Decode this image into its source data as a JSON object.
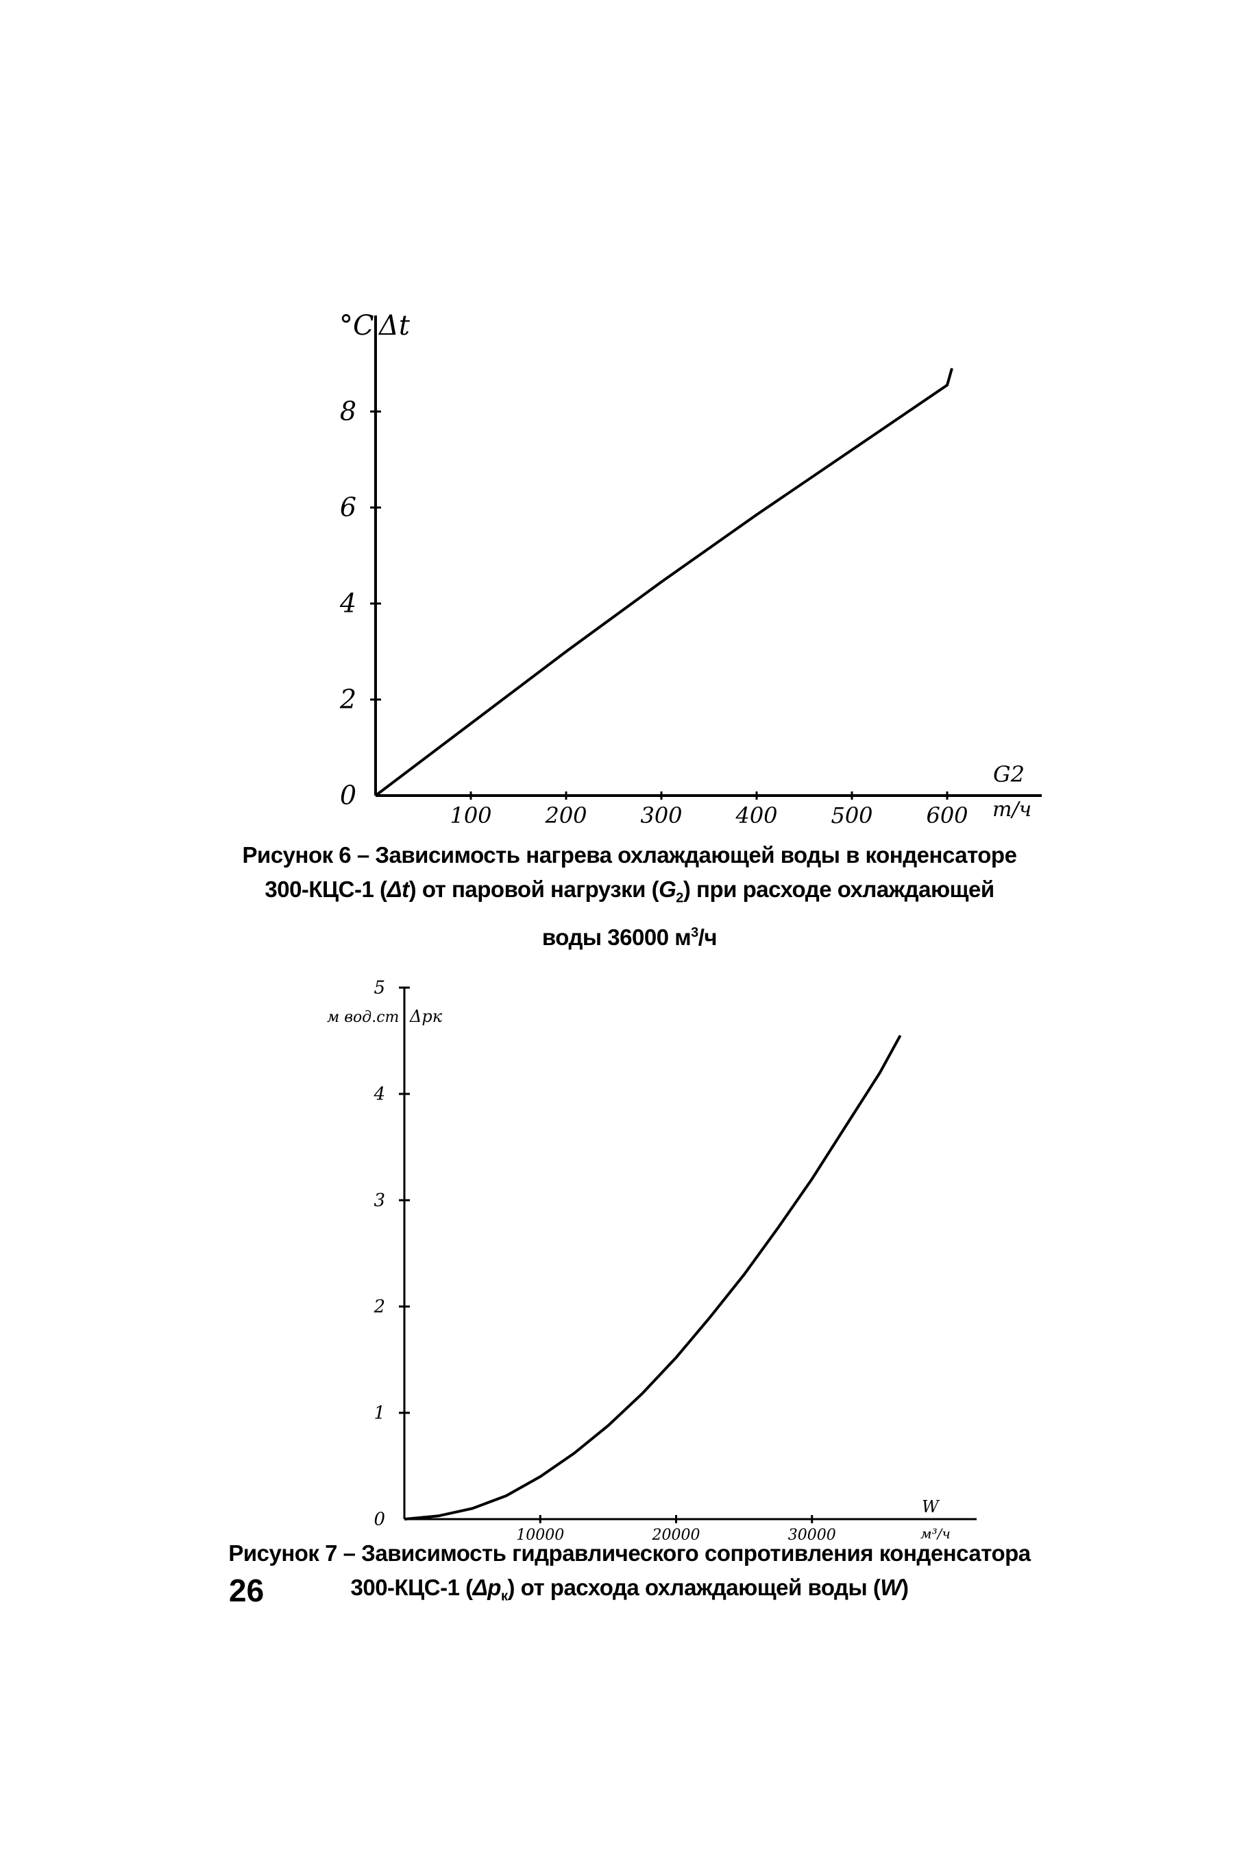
{
  "page_number": "26",
  "figures": [
    {
      "caption": {
        "line1": "Рисунок 6 – Зависимость нагрева охлаждающей воды в конденсаторе",
        "line2_a": "300-КЦС-1 (",
        "line2_sym1": "Δt",
        "line2_b": ") от паровой нагрузки (",
        "line2_sym2": "G",
        "line2_sym2_sub": "2",
        "line2_c": ") при расходе охлаждающей",
        "line3_a": "воды 36000 м",
        "line3_sup": "3",
        "line3_b": "/ч"
      }
    },
    {
      "caption": {
        "line1": "Рисунок 7 – Зависимость гидравлического сопротивления конденсатора",
        "line2_a": "300-КЦС-1 (",
        "line2_sym1": "Δp",
        "line2_sym1_sub": "к",
        "line2_b": ") от расхода охлаждающей воды (",
        "line2_sym2": "W",
        "line2_c": ")"
      }
    }
  ],
  "chart_data": [
    {
      "type": "line",
      "title": "",
      "xlabel": "G2",
      "xunit": "т/ч",
      "ylabel": "Δt",
      "yunit": "°C",
      "xlim": [
        0,
        700
      ],
      "ylim": [
        0,
        10
      ],
      "xticks": [
        100,
        200,
        300,
        400,
        500,
        600
      ],
      "xtick_labels": [
        "100",
        "200",
        "300",
        "400",
        "500",
        "600"
      ],
      "yticks": [
        0,
        2,
        4,
        6,
        8
      ],
      "ytick_labels": [
        "0",
        "2",
        "4",
        "6",
        "8"
      ],
      "grid": false,
      "series": [
        {
          "x": [
            0,
            100,
            200,
            300,
            400,
            500,
            600,
            605
          ],
          "y": [
            0,
            1.5,
            3.0,
            4.45,
            5.85,
            7.2,
            8.55,
            8.9
          ]
        }
      ]
    },
    {
      "type": "line",
      "title": "",
      "xlabel": "W",
      "xunit": "м³/ч",
      "ylabel": "Δpк",
      "yunit": "м вод.ст",
      "xlim": [
        0,
        40000
      ],
      "ylim": [
        0,
        5
      ],
      "xticks": [
        10000,
        20000,
        30000
      ],
      "xtick_labels": [
        "10000",
        "20000",
        "30000"
      ],
      "yticks": [
        0,
        1,
        2,
        3,
        4,
        5
      ],
      "ytick_labels": [
        "0",
        "1",
        "2",
        "3",
        "4",
        "5"
      ],
      "grid": false,
      "series": [
        {
          "x": [
            0,
            2500,
            5000,
            7500,
            10000,
            12500,
            15000,
            17500,
            20000,
            22500,
            25000,
            27500,
            30000,
            32500,
            35000,
            36500
          ],
          "y": [
            0,
            0.03,
            0.1,
            0.22,
            0.4,
            0.62,
            0.88,
            1.18,
            1.52,
            1.9,
            2.3,
            2.74,
            3.2,
            3.7,
            4.2,
            4.55
          ]
        }
      ]
    }
  ]
}
